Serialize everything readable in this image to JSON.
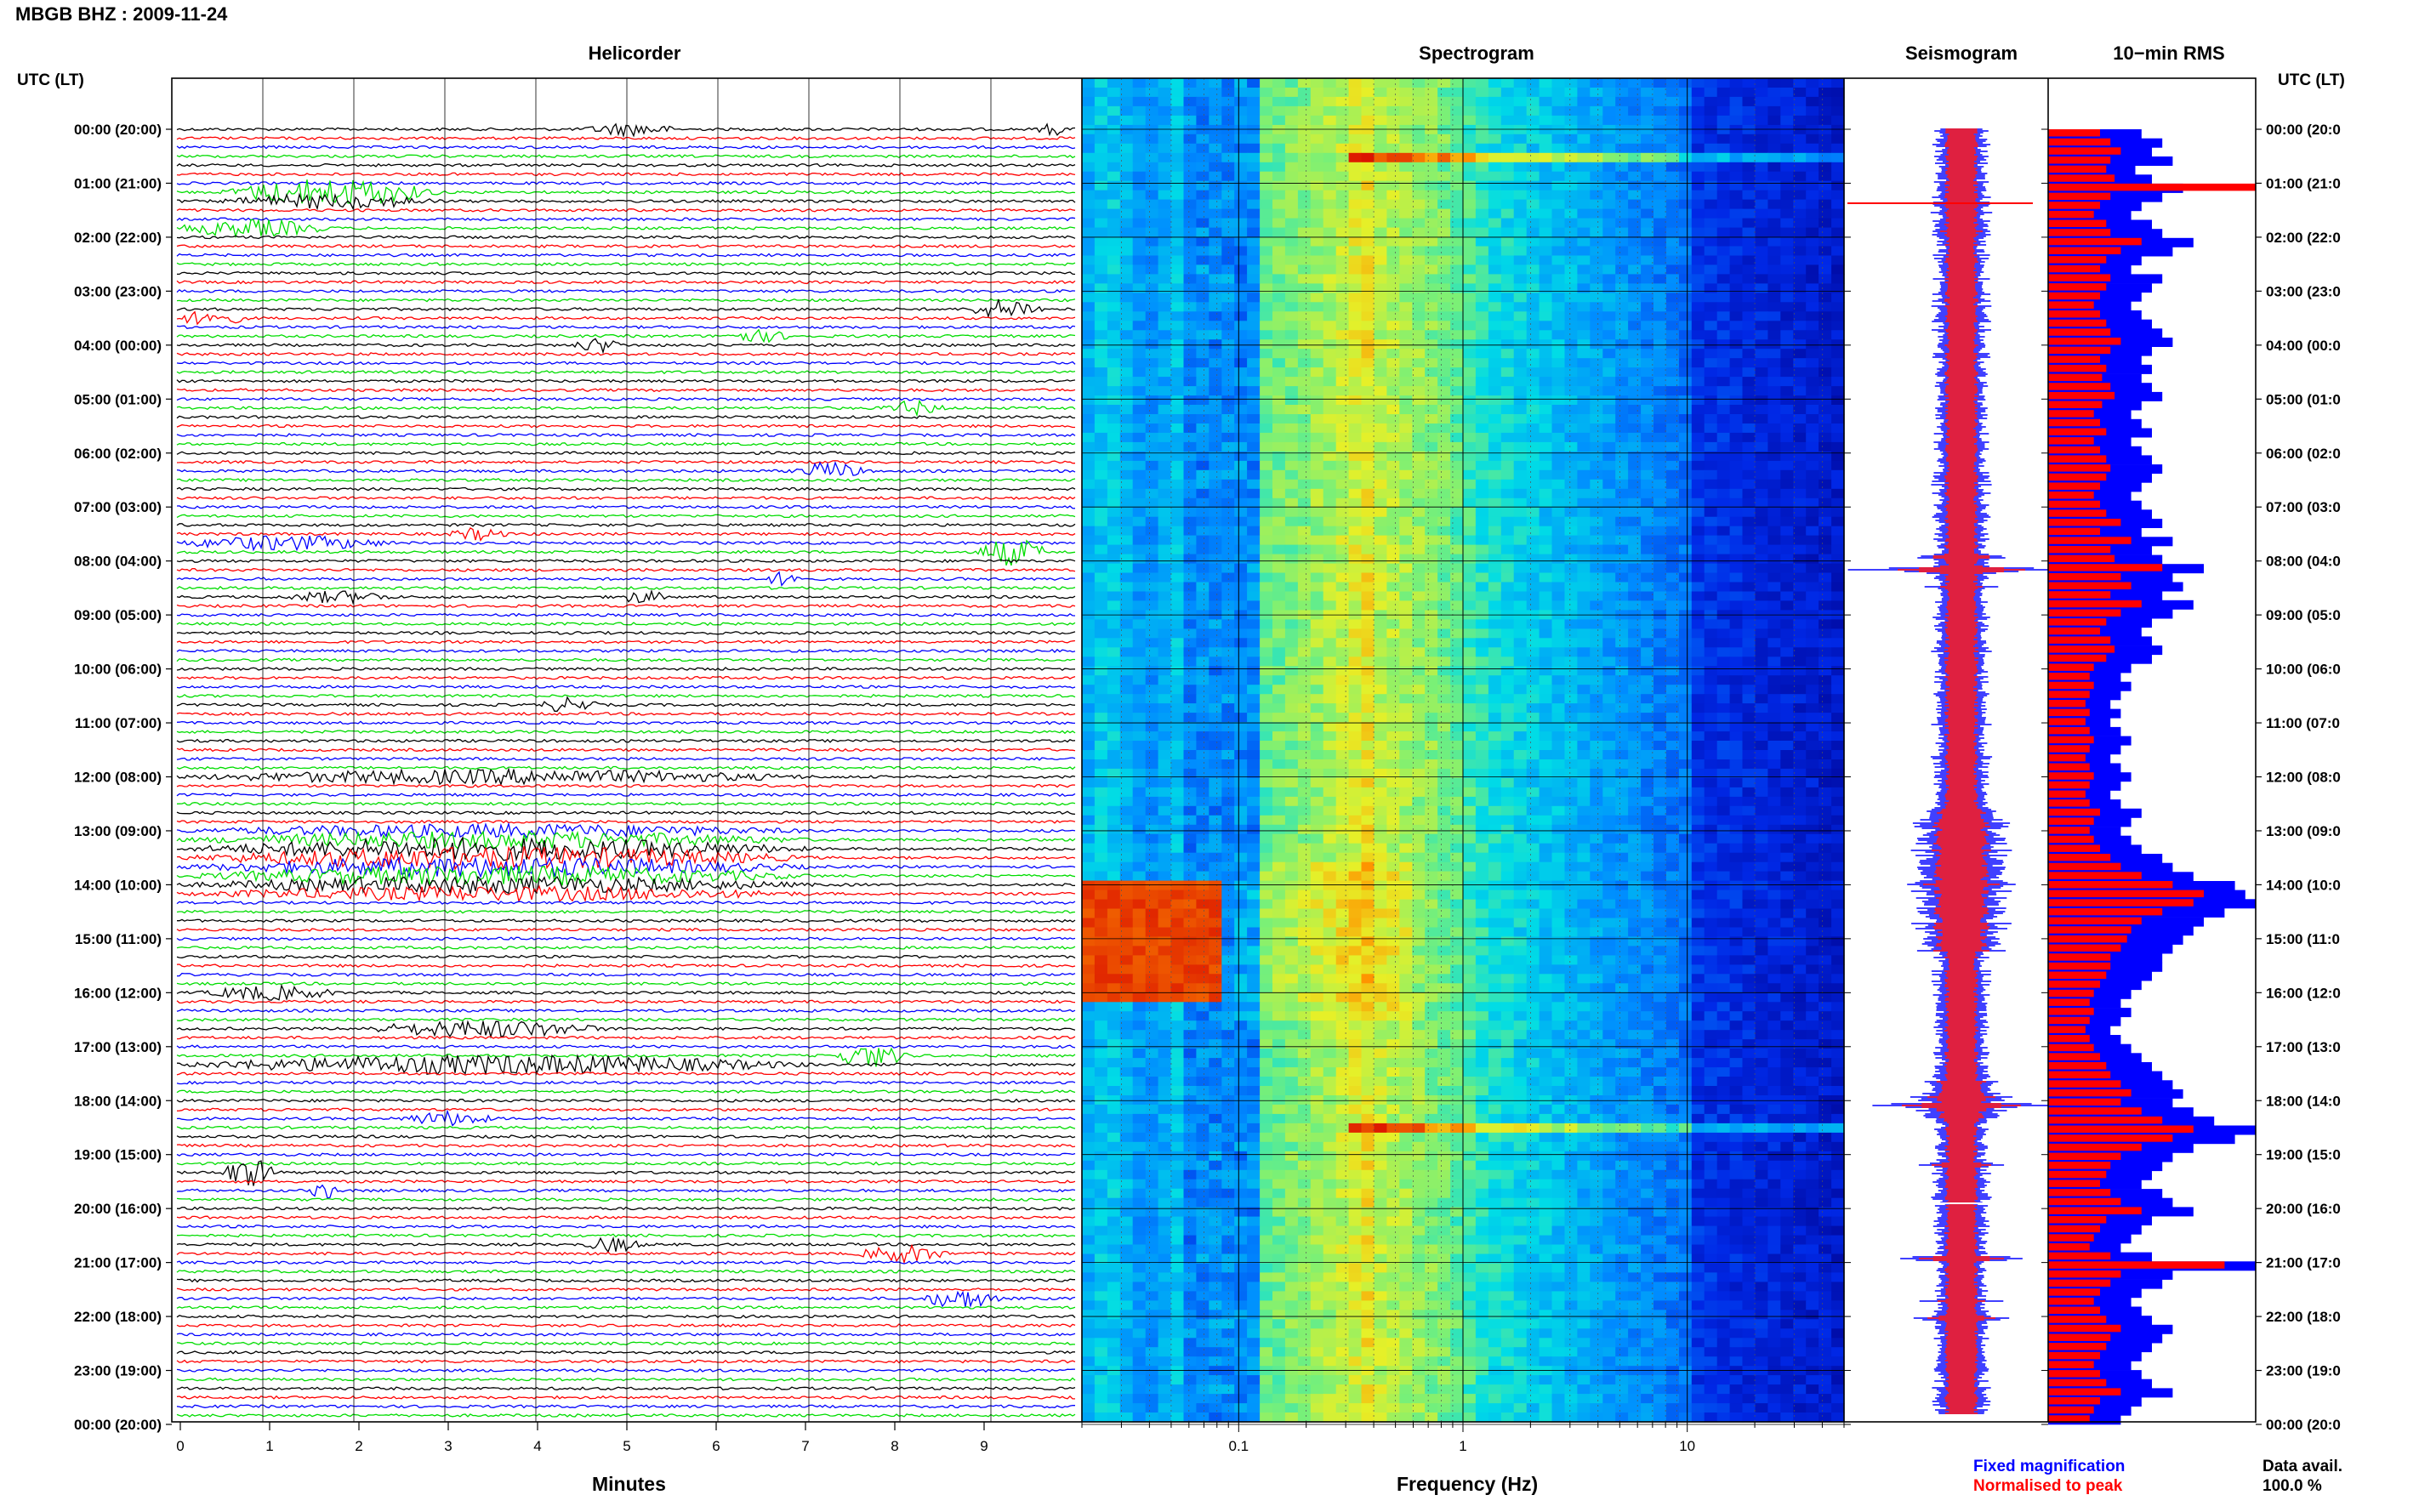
{
  "header": {
    "title": "MBGB BHZ : 2009-11-24"
  },
  "panels": {
    "helicorder": "Helicorder",
    "spectrogram": "Spectrogram",
    "seismogram": "Seismogram",
    "rms": "10−min RMS"
  },
  "axes": {
    "utc_label_left": "UTC (LT)",
    "utc_label_right": "UTC (LT)",
    "helicorder_xlabel": "Minutes",
    "spectrogram_xlabel": "Frequency (Hz)"
  },
  "legend": {
    "fixed": "Fixed magnification",
    "normalised": "Normalised to peak",
    "fixed_color": "#0000ff",
    "normalised_color": "#ff0000"
  },
  "footer": {
    "data_avail_label": "Data avail.",
    "data_avail_value": "100.0 %"
  },
  "chart_data": {
    "type": "heatmap",
    "station": "MBGB",
    "channel": "BHZ",
    "date": "2009-11-24",
    "hour_labels": [
      "00:00 (20:00)",
      "01:00 (21:00)",
      "02:00 (22:00)",
      "03:00 (23:00)",
      "04:00 (00:00)",
      "05:00 (01:00)",
      "06:00 (02:00)",
      "07:00 (03:00)",
      "08:00 (04:00)",
      "09:00 (05:00)",
      "10:00 (06:00)",
      "11:00 (07:00)",
      "12:00 (08:00)",
      "13:00 (09:00)",
      "14:00 (10:00)",
      "15:00 (11:00)",
      "16:00 (12:00)",
      "17:00 (13:00)",
      "18:00 (14:00)",
      "19:00 (15:00)",
      "20:00 (16:00)",
      "21:00 (17:00)",
      "22:00 (18:00)",
      "23:00 (19:00)",
      "00:00 (20:00)"
    ],
    "right_hour_labels": [
      "00:00 (20:0",
      "01:00 (21:0",
      "02:00 (22:0",
      "03:00 (23:0",
      "04:00 (00:0",
      "05:00 (01:0",
      "06:00 (02:0",
      "07:00 (03:0",
      "08:00 (04:0",
      "09:00 (05:0",
      "10:00 (06:0",
      "11:00 (07:0",
      "12:00 (08:0",
      "13:00 (09:0",
      "14:00 (10:0",
      "15:00 (11:0",
      "16:00 (12:0",
      "17:00 (13:0",
      "18:00 (14:0",
      "19:00 (15:0",
      "20:00 (16:0",
      "21:00 (17:0",
      "22:00 (18:0",
      "23:00 (19:0",
      "00:00 (20:0"
    ],
    "helicorder_trace_colors": [
      "#000000",
      "#ff0000",
      "#0000ff",
      "#00dd00"
    ],
    "helicorder_minutes": [
      "0",
      "1",
      "2",
      "3",
      "4",
      "5",
      "6",
      "7",
      "8",
      "9"
    ],
    "helicorder_xlim": [
      0,
      10
    ],
    "spectrogram_freq_ticks": [
      "0.1",
      "1",
      "10"
    ],
    "spectrogram_xlim": [
      0.02,
      50
    ],
    "spectrogram_xscale": "log",
    "rms_fixed_minutes_resolution": 10,
    "rms_blue_levels": [
      0.45,
      0.55,
      0.5,
      0.6,
      0.42,
      0.5,
      0.65,
      0.55,
      0.45,
      0.4,
      0.5,
      0.55,
      0.7,
      0.6,
      0.45,
      0.4,
      0.55,
      0.5,
      0.45,
      0.4,
      0.45,
      0.5,
      0.55,
      0.6,
      0.5,
      0.45,
      0.5,
      0.45,
      0.5,
      0.55,
      0.45,
      0.4,
      0.45,
      0.5,
      0.4,
      0.45,
      0.5,
      0.55,
      0.5,
      0.45,
      0.4,
      0.45,
      0.5,
      0.55,
      0.45,
      0.6,
      0.5,
      0.55,
      0.75,
      0.6,
      0.65,
      0.55,
      0.7,
      0.6,
      0.5,
      0.45,
      0.5,
      0.55,
      0.5,
      0.4,
      0.35,
      0.4,
      0.35,
      0.3,
      0.35,
      0.3,
      0.35,
      0.4,
      0.35,
      0.3,
      0.35,
      0.4,
      0.35,
      0.3,
      0.35,
      0.45,
      0.4,
      0.35,
      0.4,
      0.45,
      0.55,
      0.6,
      0.7,
      0.9,
      0.95,
      1.0,
      0.85,
      0.75,
      0.7,
      0.65,
      0.6,
      0.55,
      0.55,
      0.5,
      0.45,
      0.4,
      0.35,
      0.4,
      0.35,
      0.3,
      0.35,
      0.4,
      0.45,
      0.5,
      0.55,
      0.6,
      0.65,
      0.6,
      0.7,
      0.8,
      1.0,
      0.9,
      0.7,
      0.6,
      0.55,
      0.5,
      0.45,
      0.55,
      0.6,
      0.7,
      0.5,
      0.45,
      0.4,
      0.35,
      0.5,
      1.0,
      0.6,
      0.55,
      0.45,
      0.4,
      0.45,
      0.5,
      0.6,
      0.55,
      0.5,
      0.45,
      0.4,
      0.45,
      0.5,
      0.6,
      0.45,
      0.4,
      0.35
    ],
    "rms_red_levels": [
      0.25,
      0.3,
      0.35,
      0.3,
      0.28,
      0.32,
      1.0,
      0.3,
      0.25,
      0.22,
      0.28,
      0.3,
      0.45,
      0.35,
      0.28,
      0.25,
      0.3,
      0.28,
      0.25,
      0.22,
      0.25,
      0.28,
      0.3,
      0.35,
      0.3,
      0.25,
      0.28,
      0.26,
      0.3,
      0.32,
      0.26,
      0.22,
      0.25,
      0.28,
      0.22,
      0.25,
      0.28,
      0.3,
      0.28,
      0.25,
      0.22,
      0.25,
      0.28,
      0.35,
      0.25,
      0.4,
      0.3,
      0.32,
      0.55,
      0.35,
      0.4,
      0.3,
      0.45,
      0.35,
      0.28,
      0.25,
      0.3,
      0.32,
      0.28,
      0.22,
      0.2,
      0.22,
      0.2,
      0.18,
      0.2,
      0.18,
      0.2,
      0.22,
      0.2,
      0.18,
      0.2,
      0.22,
      0.2,
      0.18,
      0.2,
      0.25,
      0.22,
      0.2,
      0.22,
      0.25,
      0.3,
      0.35,
      0.45,
      0.6,
      0.75,
      0.7,
      0.55,
      0.45,
      0.4,
      0.38,
      0.35,
      0.3,
      0.3,
      0.28,
      0.25,
      0.22,
      0.2,
      0.22,
      0.2,
      0.18,
      0.2,
      0.22,
      0.25,
      0.28,
      0.3,
      0.35,
      0.4,
      0.35,
      0.45,
      0.55,
      0.7,
      0.6,
      0.45,
      0.35,
      0.3,
      0.28,
      0.25,
      0.3,
      0.35,
      0.45,
      0.28,
      0.25,
      0.22,
      0.2,
      0.3,
      0.85,
      0.35,
      0.3,
      0.25,
      0.22,
      0.25,
      0.28,
      0.35,
      0.3,
      0.28,
      0.25,
      0.22,
      0.25,
      0.28,
      0.35,
      0.25,
      0.22,
      0.2
    ]
  }
}
